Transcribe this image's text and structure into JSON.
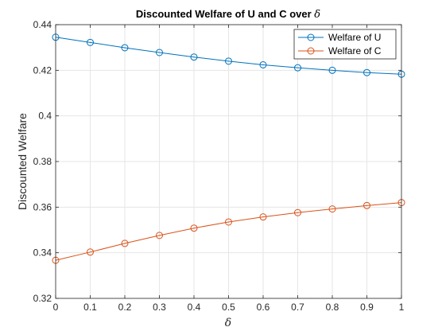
{
  "chart_data": {
    "type": "line",
    "title": {
      "prefix": "Discounted Welfare of U and C over ",
      "symbol": "δ"
    },
    "xlabel": "δ",
    "ylabel": "Discounted Welfare",
    "xlim": [
      0,
      1
    ],
    "ylim": [
      0.32,
      0.44
    ],
    "xticks": [
      "0",
      "0.1",
      "0.2",
      "0.3",
      "0.4",
      "0.5",
      "0.6",
      "0.7",
      "0.8",
      "0.9",
      "1"
    ],
    "yticks": [
      "0.32",
      "0.34",
      "0.36",
      "0.38",
      "0.4",
      "0.42",
      "0.44"
    ],
    "grid": true,
    "legend_position": "top-right",
    "x": [
      0,
      0.1,
      0.2,
      0.3,
      0.4,
      0.5,
      0.6,
      0.7,
      0.8,
      0.9,
      1
    ],
    "series": [
      {
        "name": "Welfare of U",
        "color": "#0072BD",
        "marker": "circle",
        "values": [
          0.4345,
          0.4322,
          0.4299,
          0.4278,
          0.4258,
          0.424,
          0.4224,
          0.4211,
          0.42,
          0.419,
          0.4183
        ]
      },
      {
        "name": "Welfare of C",
        "color": "#D95319",
        "marker": "circle",
        "values": [
          0.3367,
          0.3403,
          0.3441,
          0.3476,
          0.3508,
          0.3535,
          0.3557,
          0.3576,
          0.3592,
          0.3607,
          0.362
        ]
      }
    ]
  }
}
